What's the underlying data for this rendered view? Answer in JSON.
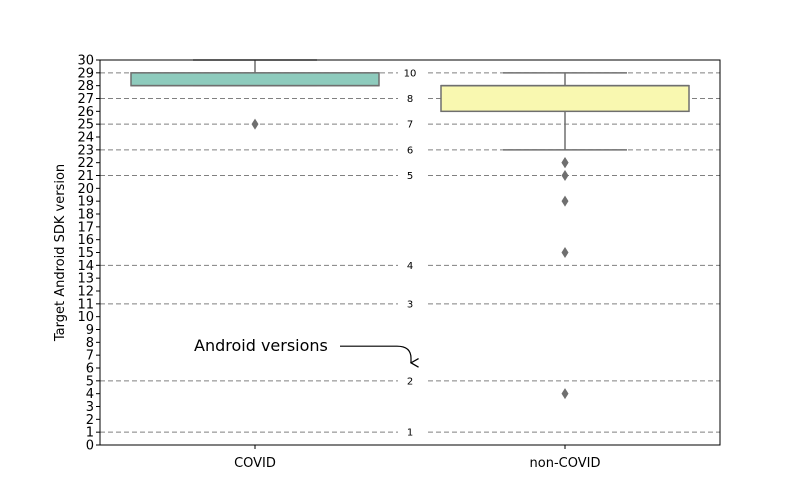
{
  "chart_data": {
    "type": "box",
    "ylabel": "Target Android SDK version",
    "ylim": [
      0,
      30
    ],
    "yticks": [
      0,
      1,
      2,
      3,
      4,
      5,
      6,
      7,
      8,
      9,
      10,
      11,
      12,
      13,
      14,
      15,
      16,
      17,
      18,
      19,
      20,
      21,
      22,
      23,
      24,
      25,
      26,
      27,
      28,
      29,
      30
    ],
    "categories": [
      "COVID",
      "non-COVID"
    ],
    "boxes": [
      {
        "category": "COVID",
        "color": "#8ecbbd",
        "whisker_low": 28,
        "q1": 28,
        "median": 28,
        "q3": 29,
        "whisker_high": 30,
        "outliers": [
          25
        ]
      },
      {
        "category": "non-COVID",
        "color": "#f9f8b0",
        "whisker_low": 23,
        "q1": 26,
        "median": 28,
        "q3": 28,
        "whisker_high": 29,
        "outliers": [
          22,
          22,
          21,
          19,
          15,
          4
        ]
      }
    ],
    "android_versions": [
      {
        "label": "1",
        "sdk": 1
      },
      {
        "label": "2",
        "sdk": 5
      },
      {
        "label": "3",
        "sdk": 11
      },
      {
        "label": "4",
        "sdk": 14
      },
      {
        "label": "5",
        "sdk": 21
      },
      {
        "label": "6",
        "sdk": 23
      },
      {
        "label": "7",
        "sdk": 25
      },
      {
        "label": "8",
        "sdk": 27
      },
      {
        "label": "10",
        "sdk": 29
      }
    ],
    "annotation": "Android versions",
    "grid_style": "dashed",
    "colors": {
      "line": "#6f6f6f",
      "grid": "#808080",
      "outlier": "#6f6f6f"
    }
  }
}
